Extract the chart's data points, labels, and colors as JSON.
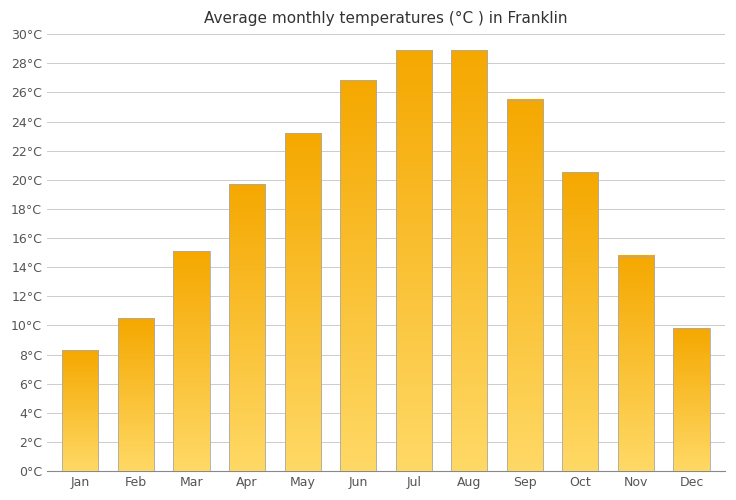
{
  "title": "Average monthly temperatures (°C ) in Franklin",
  "months": [
    "Jan",
    "Feb",
    "Mar",
    "Apr",
    "May",
    "Jun",
    "Jul",
    "Aug",
    "Sep",
    "Oct",
    "Nov",
    "Dec"
  ],
  "values": [
    8.3,
    10.5,
    15.1,
    19.7,
    23.2,
    26.8,
    28.9,
    28.9,
    25.5,
    20.5,
    14.8,
    9.8
  ],
  "bar_color_bottom": "#FFD966",
  "bar_color_top": "#F5A800",
  "edge_color": "#AAAAAA",
  "background_color": "#FFFFFF",
  "grid_color": "#CCCCCC",
  "ylim": [
    0,
    30
  ],
  "ytick_step": 2,
  "title_fontsize": 11,
  "tick_fontsize": 9,
  "bar_width": 0.65
}
